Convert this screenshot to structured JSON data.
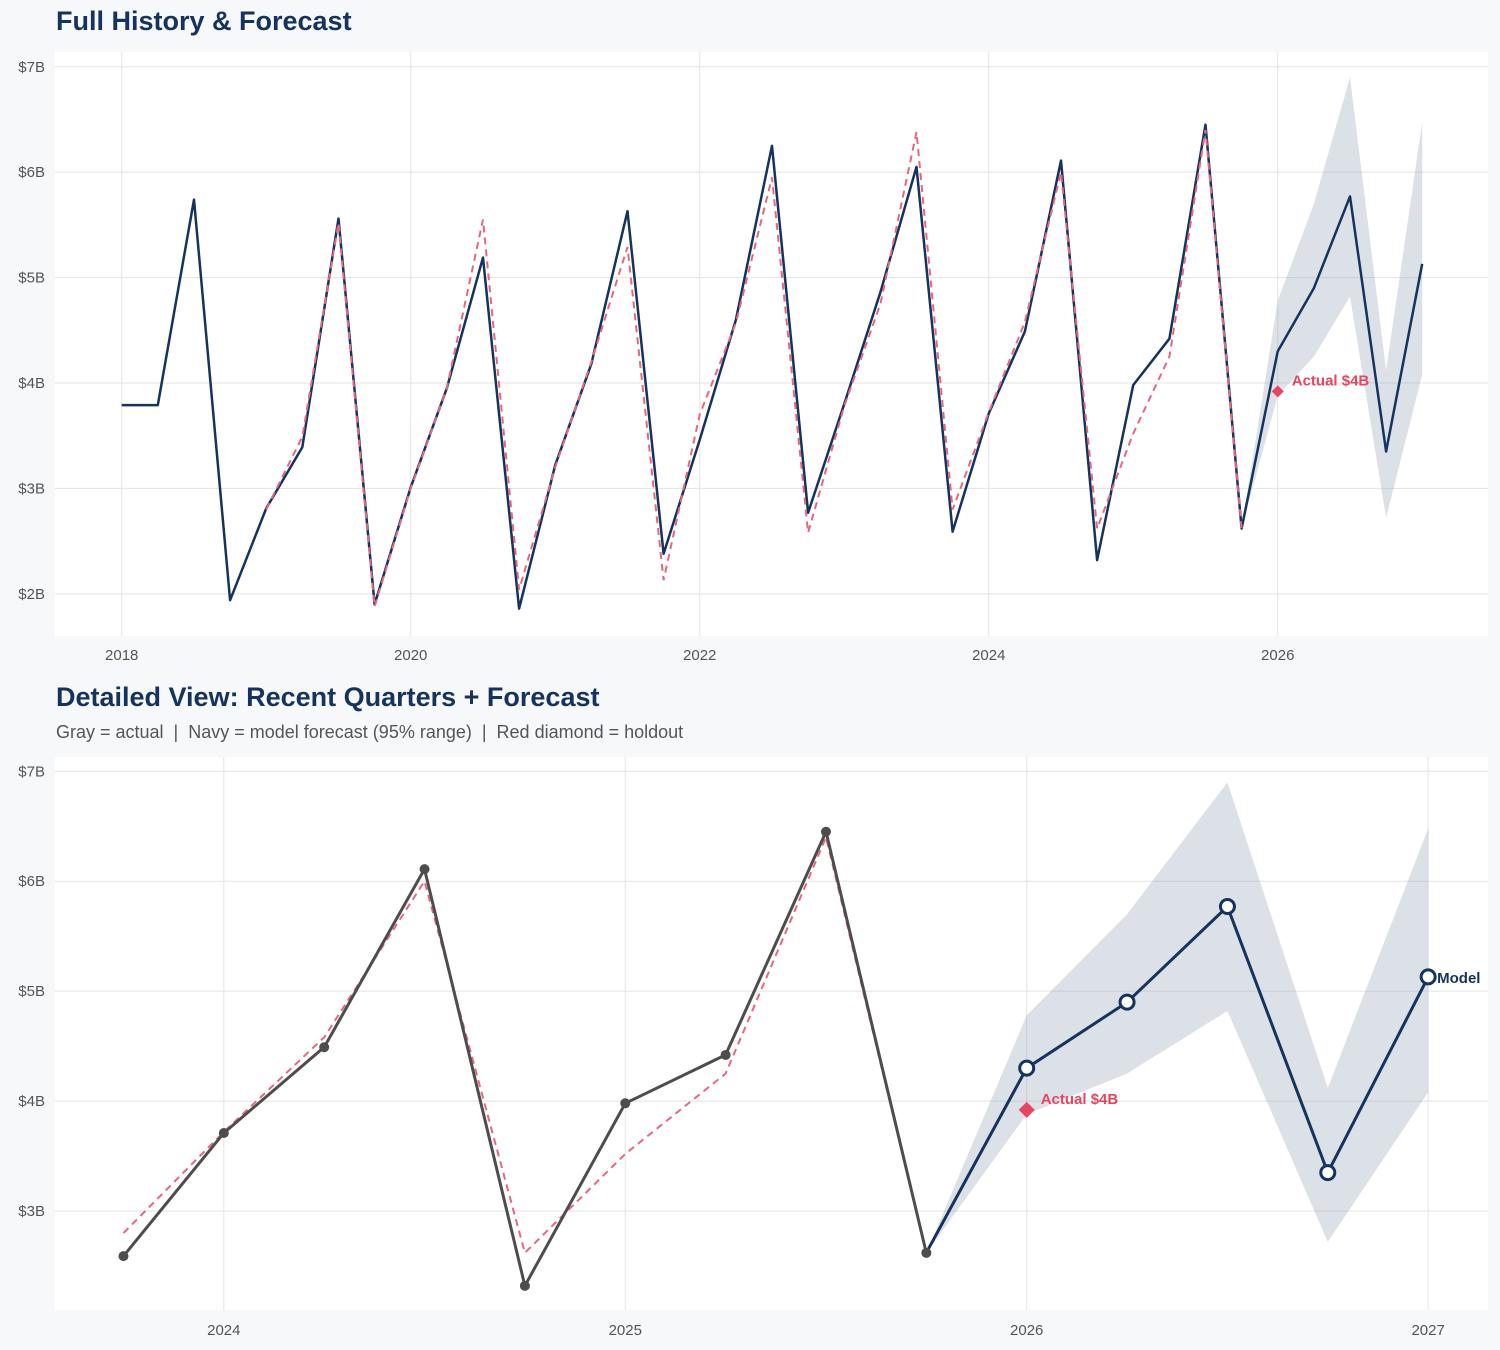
{
  "colors": {
    "navy": "#14335e",
    "actual_gray": "#4d4d4d",
    "fitted_red": "#e8677f",
    "holdout_red": "#e8455f",
    "band": "#dce1e7",
    "grid": "#e3e3e3"
  },
  "chart_data": [
    {
      "type": "line",
      "title": "Full History & Forecast",
      "xlim": [
        "2017-07-15",
        "2027-06-15"
      ],
      "ylim": [
        1.6,
        7.14
      ],
      "x_ticks": [
        "2018",
        "2020",
        "2022",
        "2024",
        "2026"
      ],
      "y_ticks": [
        "$2B",
        "$3B",
        "$4B",
        "$5B",
        "$6B",
        "$7B"
      ],
      "y_tick_values": [
        2,
        3,
        4,
        5,
        6,
        7
      ],
      "grid": true,
      "history_color": "#14335e",
      "show_markers": false,
      "history_from": "2018-01-01",
      "annotation": "Actual $4B",
      "end_label": ""
    },
    {
      "type": "line",
      "title": "Detailed View: Recent Quarters + Forecast",
      "subtitle": "Gray = actual  |  Navy = model forecast (95% range)  |  Red diamond = holdout",
      "xlim": [
        "2023-07-30",
        "2027-02-25"
      ],
      "ylim": [
        2.1,
        7.13
      ],
      "x_ticks": [
        "2024",
        "2025",
        "2026",
        "2027"
      ],
      "y_ticks": [
        "$3B",
        "$4B",
        "$5B",
        "$6B",
        "$7B"
      ],
      "y_tick_values": [
        3,
        4,
        5,
        6,
        7
      ],
      "grid": true,
      "history_color": "#4d4d4d",
      "show_markers": true,
      "history_from": "2023-10-01",
      "annotation": "Actual $4B",
      "end_label": "Model"
    }
  ],
  "series": {
    "actual": {
      "dates": [
        "2018-01-01",
        "2018-04-01",
        "2018-07-01",
        "2018-10-01",
        "2019-01-01",
        "2019-04-01",
        "2019-07-01",
        "2019-10-01",
        "2020-01-01",
        "2020-04-01",
        "2020-07-01",
        "2020-10-01",
        "2021-01-01",
        "2021-04-01",
        "2021-07-01",
        "2021-10-01",
        "2022-01-01",
        "2022-04-01",
        "2022-07-01",
        "2022-10-01",
        "2023-01-01",
        "2023-04-01",
        "2023-07-01",
        "2023-10-01",
        "2024-01-01",
        "2024-04-01",
        "2024-07-01",
        "2024-10-01",
        "2025-01-01",
        "2025-04-01",
        "2025-07-01",
        "2025-10-01"
      ],
      "values": [
        3.79,
        3.79,
        5.74,
        1.94,
        2.81,
        3.39,
        5.56,
        1.9,
        3.01,
        3.95,
        5.19,
        1.86,
        3.22,
        4.18,
        5.63,
        2.38,
        3.46,
        4.6,
        6.25,
        2.77,
        3.8,
        4.86,
        6.05,
        2.59,
        3.71,
        4.49,
        6.11,
        2.32,
        3.98,
        4.42,
        6.45,
        2.62
      ]
    },
    "fitted": {
      "dates": [
        "2019-01-01",
        "2019-04-01",
        "2019-07-01",
        "2019-10-01",
        "2020-01-01",
        "2020-04-01",
        "2020-07-01",
        "2020-10-01",
        "2021-01-01",
        "2021-04-01",
        "2021-07-01",
        "2021-10-01",
        "2022-01-01",
        "2022-04-01",
        "2022-07-01",
        "2022-10-01",
        "2023-01-01",
        "2023-04-01",
        "2023-07-01",
        "2023-10-01",
        "2024-01-01",
        "2024-04-01",
        "2024-07-01",
        "2024-10-01",
        "2025-01-01",
        "2025-04-01",
        "2025-07-01",
        "2025-10-01"
      ],
      "values": [
        2.8,
        3.49,
        5.52,
        1.88,
        3.0,
        3.95,
        5.55,
        2.04,
        3.2,
        4.2,
        5.29,
        2.13,
        3.7,
        4.57,
        5.95,
        2.58,
        3.78,
        4.75,
        6.38,
        2.8,
        3.72,
        4.58,
        6.0,
        2.62,
        3.52,
        4.25,
        6.4,
        2.62
      ]
    },
    "forecast": {
      "dates": [
        "2026-01-01",
        "2026-04-01",
        "2026-07-01",
        "2026-10-01",
        "2027-01-01"
      ],
      "values": [
        4.3,
        4.9,
        5.77,
        3.35,
        5.13
      ],
      "lower": [
        3.88,
        4.25,
        4.82,
        2.72,
        4.08
      ],
      "upper": [
        4.78,
        5.7,
        6.9,
        4.12,
        6.48
      ]
    },
    "holdout": {
      "date": "2026-01-01",
      "value": 3.92
    }
  }
}
